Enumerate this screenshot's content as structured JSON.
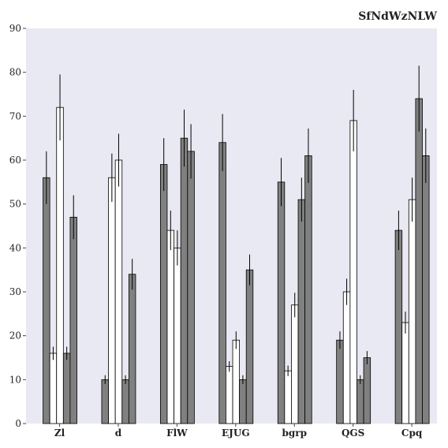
{
  "chart_data": {
    "type": "bar",
    "title": "SfNdWzNLW",
    "xlabel": "",
    "ylabel": "",
    "ylim": [
      0,
      90
    ],
    "yticks": [
      0,
      10,
      20,
      30,
      40,
      50,
      60,
      70,
      80,
      90
    ],
    "grid": false,
    "legend": "none",
    "categories": [
      "Zl",
      "d",
      "FlW",
      "EJUG",
      "bgrp",
      "QGS",
      "Cpq"
    ],
    "series": [
      {
        "color": "#808080",
        "values": [
          56,
          10,
          59,
          64,
          55,
          19,
          44
        ],
        "errors": [
          6,
          1,
          6,
          6.5,
          5.5,
          2,
          4.5
        ]
      },
      {
        "color": "#ffffff",
        "values": [
          16,
          56,
          44,
          13,
          12,
          30,
          23
        ],
        "errors": [
          1.5,
          5.5,
          4.5,
          1.2,
          1.2,
          3,
          2.5
        ]
      },
      {
        "color": "#ffffff",
        "values": [
          72,
          60,
          40,
          19,
          27,
          69,
          51
        ],
        "errors": [
          7.5,
          6,
          4,
          2,
          2.8,
          7,
          5
        ]
      },
      {
        "color": "#808080",
        "values": [
          16,
          10,
          65,
          10,
          51,
          10,
          74
        ],
        "errors": [
          1.5,
          1,
          6.5,
          1,
          5,
          1,
          7.5
        ]
      },
      {
        "color": "#808080",
        "values": [
          47,
          34,
          62,
          35,
          61,
          15,
          61
        ],
        "errors": [
          5,
          3.5,
          6.2,
          3.5,
          6.2,
          1.5,
          6.2
        ]
      }
    ],
    "colors": {
      "background": "#e9e9f3",
      "bar_edge": "#000000"
    }
  }
}
